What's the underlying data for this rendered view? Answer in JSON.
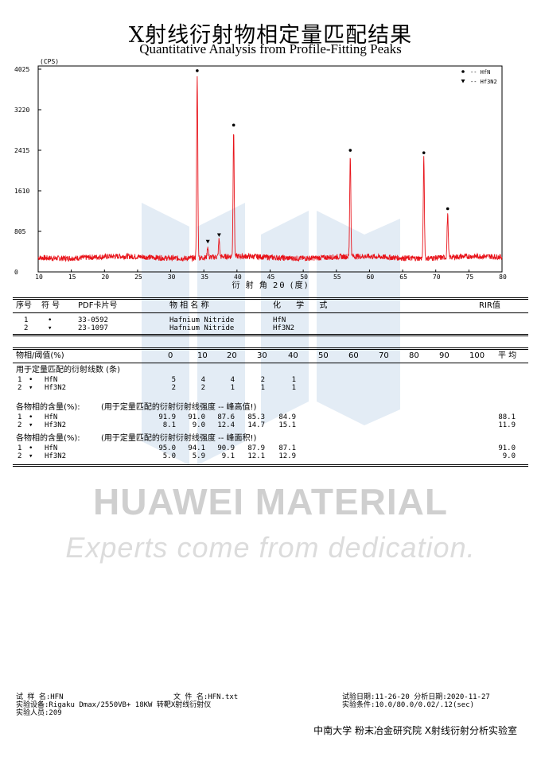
{
  "header": {
    "title_cn": "X射线衍射物相定量匹配结果",
    "title_en": "Quantitative Analysis from Profile-Fitting Peaks"
  },
  "chart_data": {
    "type": "line",
    "title": "",
    "ylabel": "(CPS)",
    "xlabel": "衍 射 角 2θ (度)",
    "xlim": [
      10,
      80
    ],
    "ylim": [
      0,
      4025
    ],
    "yticks": [
      0,
      805,
      1610,
      2415,
      3220,
      4025
    ],
    "xticks": [
      10,
      15,
      20,
      25,
      30,
      35,
      40,
      45,
      50,
      55,
      60,
      65,
      70,
      75,
      80
    ],
    "grid": false,
    "legend_position": "top-right",
    "line_color": "#e8141b",
    "legend": [
      {
        "marker": "circle",
        "label": "-- HfN"
      },
      {
        "marker": "triangle",
        "label": "-- Hf3N2"
      }
    ],
    "peaks": [
      {
        "x": 34.0,
        "y": 3900,
        "phase": "HfN"
      },
      {
        "x": 39.5,
        "y": 2820,
        "phase": "HfN"
      },
      {
        "x": 57.1,
        "y": 2320,
        "phase": "HfN"
      },
      {
        "x": 68.2,
        "y": 2270,
        "phase": "HfN"
      },
      {
        "x": 71.8,
        "y": 1160,
        "phase": "HfN"
      },
      {
        "x": 35.6,
        "y": 510,
        "phase": "Hf3N2"
      },
      {
        "x": 37.3,
        "y": 640,
        "phase": "Hf3N2"
      }
    ],
    "baseline": 290
  },
  "phase_table": {
    "headers": [
      "序号",
      "符 号",
      "PDF卡片号",
      "物 相 名 称",
      "化 学 式",
      "RIR值"
    ],
    "rows": [
      {
        "no": "1",
        "symbol": "•",
        "pdf": "33-0592",
        "name": "Hafnium Nitride",
        "formula": "HfN",
        "rir": ""
      },
      {
        "no": "2",
        "symbol": "▾",
        "pdf": "23-1097",
        "name": "Hafnium Nitride",
        "formula": "Hf3N2",
        "rir": ""
      }
    ]
  },
  "threshold_table": {
    "label": "物相/阈值(%)",
    "columns": [
      "0",
      "10",
      "20",
      "30",
      "40",
      "50",
      "60",
      "70",
      "80",
      "90",
      "100",
      "平 均"
    ],
    "sections": [
      {
        "title": "用于定量匹配的衍射线数 (条)",
        "rows": [
          {
            "no": "1",
            "symbol": "•",
            "phase": "HfN",
            "values": [
              "5",
              "4",
              "4",
              "2",
              "1"
            ],
            "avg": ""
          },
          {
            "no": "2",
            "symbol": "▾",
            "phase": "Hf3N2",
            "values": [
              "2",
              "2",
              "1",
              "1",
              "1"
            ],
            "avg": ""
          }
        ]
      },
      {
        "title": "各物相的含量(%):",
        "note": "(用于定量匹配的衍射衍射线强度 -- 峰高值!)",
        "rows": [
          {
            "no": "1",
            "symbol": "•",
            "phase": "HfN",
            "values": [
              "91.9",
              "91.0",
              "87.6",
              "85.3",
              "84.9"
            ],
            "avg": "88.1"
          },
          {
            "no": "2",
            "symbol": "▾",
            "phase": "Hf3N2",
            "values": [
              "8.1",
              "9.0",
              "12.4",
              "14.7",
              "15.1"
            ],
            "avg": "11.9"
          }
        ]
      },
      {
        "title": "各物相的含量(%):",
        "note": "(用于定量匹配的衍射衍射线强度 -- 峰面积!)",
        "rows": [
          {
            "no": "1",
            "symbol": "•",
            "phase": "HfN",
            "values": [
              "95.0",
              "94.1",
              "90.9",
              "87.9",
              "87.1"
            ],
            "avg": "91.0"
          },
          {
            "no": "2",
            "symbol": "▾",
            "phase": "Hf3N2",
            "values": [
              "5.0",
              "5.9",
              "9.1",
              "12.1",
              "12.9"
            ],
            "avg": "9.0"
          }
        ]
      }
    ]
  },
  "watermark": {
    "brand": "HUAWEI MATERIAL",
    "tagline": "Experts come from dedication."
  },
  "footer": {
    "sample_label": "试 样 名:",
    "sample_value": "HFN",
    "file_label": "文 件 名:",
    "file_value": "HFN.txt",
    "test_date_label": "试验日期:",
    "test_date_value": "11-26-20",
    "analysis_date_label": "分析日期:",
    "analysis_date_value": "2020-11-27",
    "instrument_label": "实验设备:",
    "instrument_value": "Rigaku Dmax/2550VB+ 18KW 转靶X射线衍射仪",
    "conditions_label": "实验条件:",
    "conditions_value": "10.0/80.0/0.02/.12(sec)",
    "operator_label": "实验人员:",
    "operator_value": "209",
    "lab": "中南大学 粉末冶金研究院 X射线衍射分析实验室"
  }
}
